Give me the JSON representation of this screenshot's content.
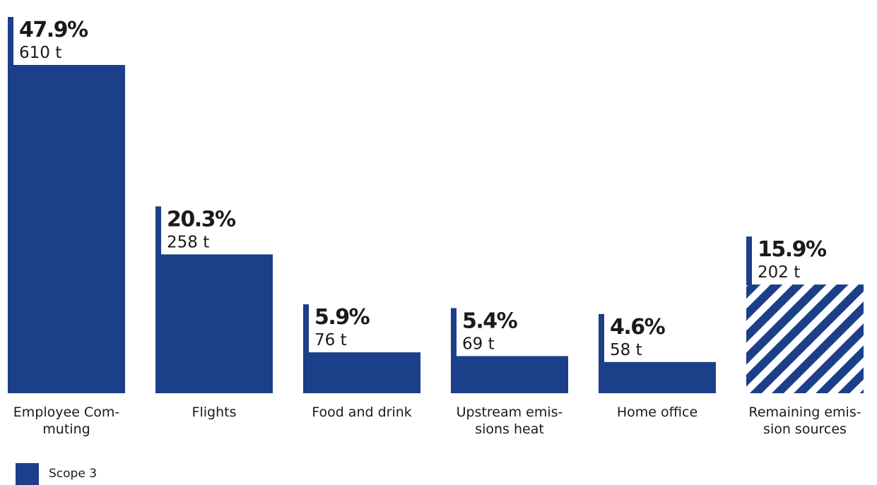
{
  "chart_data": {
    "type": "bar",
    "unit": "t",
    "colors": {
      "bar": "#1c3f8a",
      "hatch_bg": "#ffffff"
    },
    "categories": [
      [
        "Employee Com-",
        "muting"
      ],
      [
        "Flights"
      ],
      [
        "Food and drink"
      ],
      [
        "Upstream emis-",
        "sions heat"
      ],
      [
        "Home office"
      ],
      [
        "Remaining emis-",
        "sion sources"
      ]
    ],
    "percent_labels": [
      "47.9%",
      "20.3%",
      "5.9%",
      "5.4%",
      "4.6%",
      "15.9%"
    ],
    "value_labels": [
      "610 t",
      "258 t",
      "76 t",
      "69 t",
      "58 t",
      "202 t"
    ],
    "values": [
      610,
      258,
      76,
      69,
      58,
      202
    ],
    "percentages": [
      47.9,
      20.3,
      5.9,
      5.4,
      4.6,
      15.9
    ],
    "hatched": [
      false,
      false,
      false,
      false,
      false,
      true
    ],
    "legend": [
      {
        "label": "Scope 3",
        "color": "#1c3f8a"
      }
    ]
  }
}
